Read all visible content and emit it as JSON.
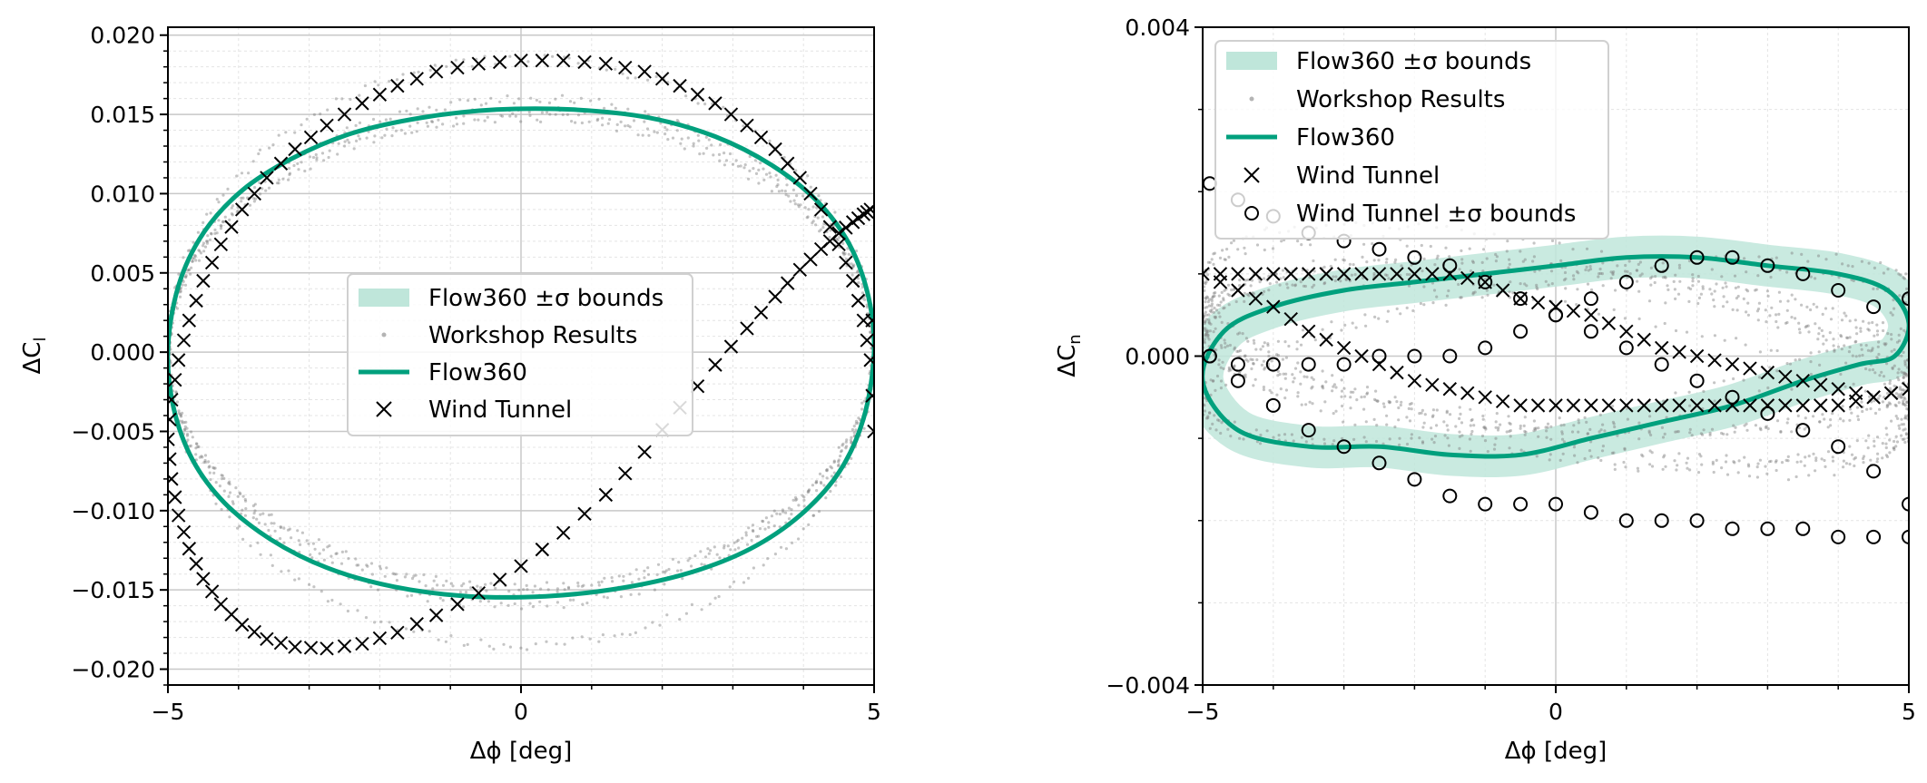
{
  "colors": {
    "flow360": "#00a07d",
    "band": "#bfe6da",
    "workshop": "#7f7f7f",
    "workshop_legend": "#b4b4b4",
    "wind_tunnel": "#000000",
    "grid_major": "#c8c8c8",
    "grid_minor": "#e4e4e4"
  },
  "chart_data": [
    {
      "type": "line",
      "xlabel": "Δϕ [deg]",
      "ylabel": "ΔC_l",
      "xlim": [
        -5,
        5
      ],
      "ylim": [
        -0.021,
        0.0205
      ],
      "xticks": [
        -5,
        0,
        5
      ],
      "xtick_labels": [
        "−5",
        "0",
        "5"
      ],
      "yticks": [
        -0.02,
        -0.015,
        -0.01,
        -0.005,
        0.0,
        0.005,
        0.01,
        0.015,
        0.02
      ],
      "ytick_labels": [
        "−0.020",
        "−0.015",
        "−0.010",
        "−0.005",
        "0.000",
        "0.005",
        "0.010",
        "0.015",
        "0.020"
      ],
      "grid": true,
      "legend_position": "center",
      "legend": [
        "Flow360 ±σ bounds",
        "Workshop Results",
        "Flow360",
        "Wind Tunnel"
      ],
      "series": [
        {
          "name": "Flow360",
          "style": "line",
          "x": [
            5.0,
            4.92,
            4.65,
            4.2,
            3.55,
            2.75,
            1.8,
            0.75,
            -0.35,
            -1.4,
            -2.4,
            -3.25,
            -3.95,
            -4.5,
            -4.85,
            -5.0,
            -4.92,
            -4.65,
            -4.2,
            -3.55,
            -2.75,
            -1.8,
            -0.75,
            0.35,
            1.4,
            2.4,
            3.25,
            3.95,
            4.5,
            4.85,
            5.0
          ],
          "y": [
            0.0,
            0.0035,
            0.0068,
            0.0095,
            0.0118,
            0.0136,
            0.0148,
            0.0153,
            0.0153,
            0.0148,
            0.0138,
            0.0122,
            0.0102,
            0.0075,
            0.0042,
            0.0002,
            -0.0035,
            -0.0068,
            -0.0095,
            -0.0118,
            -0.0136,
            -0.0148,
            -0.0154,
            -0.0154,
            -0.0149,
            -0.0139,
            -0.0124,
            -0.0103,
            -0.0076,
            -0.0042,
            0.0
          ]
        },
        {
          "name": "Wind Tunnel",
          "style": "x-markers",
          "x": [
            5.0,
            4.95,
            4.85,
            4.7,
            4.5,
            4.25,
            3.95,
            3.6,
            3.2,
            2.75,
            2.25,
            1.75,
            1.2,
            0.6,
            0.0,
            -0.6,
            -1.2,
            -1.75,
            -2.25,
            -2.75,
            -3.2,
            -3.6,
            -3.95,
            -4.25,
            -4.5,
            -4.7,
            -4.85,
            -4.95,
            -5.0,
            -4.95,
            -4.85,
            -4.7,
            -4.5,
            -4.25,
            -3.95,
            -3.6,
            -3.2,
            -2.75,
            -2.25,
            -1.75,
            -1.2,
            -0.6,
            0.0,
            0.6,
            1.2,
            1.75,
            2.25,
            2.75,
            3.2,
            3.6,
            3.95,
            4.25,
            4.5,
            4.7,
            4.85,
            4.95
          ],
          "y": [
            -0.005,
            -0.0005,
            0.002,
            0.0045,
            0.0068,
            0.009,
            0.011,
            0.0128,
            0.0143,
            0.0157,
            0.0168,
            0.0177,
            0.0182,
            0.0184,
            0.0184,
            0.0182,
            0.0177,
            0.0168,
            0.0157,
            0.0143,
            0.0128,
            0.011,
            0.009,
            0.0068,
            0.0045,
            0.002,
            -0.0005,
            -0.003,
            -0.0055,
            -0.008,
            -0.0103,
            -0.0124,
            -0.0143,
            -0.0159,
            -0.0172,
            -0.0181,
            -0.0186,
            -0.0187,
            -0.0184,
            -0.0177,
            -0.0166,
            -0.0152,
            -0.0135,
            -0.0114,
            -0.009,
            -0.0063,
            -0.0035,
            -0.0008,
            0.0015,
            0.0035,
            0.0052,
            0.0065,
            0.0075,
            0.0082,
            0.0087,
            0.009
          ]
        }
      ]
    },
    {
      "type": "line",
      "xlabel": "Δϕ [deg]",
      "ylabel": "ΔC_n",
      "xlim": [
        -5,
        5
      ],
      "ylim": [
        -0.004,
        0.004
      ],
      "xticks": [
        -5,
        0,
        5
      ],
      "xtick_labels": [
        "−5",
        "0",
        "5"
      ],
      "yticks": [
        -0.004,
        0.0,
        0.004
      ],
      "ytick_labels": [
        "−0.004",
        "0.000",
        "0.004"
      ],
      "grid": true,
      "legend_position": "upper left",
      "legend": [
        "Flow360 ±σ bounds",
        "Workshop Results",
        "Flow360",
        "Wind Tunnel",
        "Wind Tunnel ±σ bounds"
      ],
      "series": [
        {
          "name": "Flow360",
          "style": "line",
          "x": [
            -5.0,
            -4.5,
            -3.5,
            -2.5,
            -1.5,
            -0.5,
            0.5,
            1.5,
            2.5,
            3.5,
            4.3,
            4.8,
            5.0,
            4.7,
            4.0,
            3.0,
            2.0,
            1.0,
            0.0,
            -1.0,
            -2.0,
            -3.0,
            -4.0,
            -4.7,
            -5.0
          ],
          "y": [
            -0.0003,
            -0.0009,
            -0.0011,
            -0.0011,
            -0.0012,
            -0.0012,
            -0.001,
            -0.0008,
            -0.0006,
            -0.0003,
            -0.0001,
            0.0,
            0.0004,
            0.0008,
            0.001,
            0.0011,
            0.0012,
            0.0012,
            0.0011,
            0.001,
            0.0009,
            0.0008,
            0.0006,
            0.0003,
            -0.0003
          ]
        },
        {
          "name": "Wind Tunnel",
          "style": "x-markers",
          "x": [
            -5.0,
            -4.5,
            -4.0,
            -3.5,
            -3.0,
            -2.5,
            -2.0,
            -1.5,
            -1.0,
            -0.5,
            0.0,
            0.5,
            1.0,
            1.5,
            2.0,
            2.5,
            3.0,
            3.5,
            4.0,
            4.5,
            5.0,
            4.5,
            4.0,
            3.5,
            3.0,
            2.5,
            2.0,
            1.5,
            1.0,
            0.5,
            0.0,
            -0.5,
            -1.0,
            -1.5,
            -2.0,
            -2.5,
            -3.0,
            -3.5,
            -4.0,
            -4.5
          ],
          "y": [
            0.001,
            0.0008,
            0.0006,
            0.0003,
            0.0001,
            -0.0001,
            -0.0003,
            -0.0004,
            -0.0005,
            -0.0006,
            -0.0006,
            -0.0006,
            -0.0006,
            -0.0006,
            -0.0006,
            -0.0006,
            -0.0006,
            -0.0006,
            -0.0006,
            -0.0005,
            -0.0004,
            -0.0005,
            -0.0004,
            -0.0003,
            -0.0002,
            -0.0001,
            0.0,
            0.0001,
            0.0003,
            0.0005,
            0.0006,
            0.0007,
            0.0009,
            0.001,
            0.001,
            0.001,
            0.001,
            0.001,
            0.001,
            0.001
          ]
        },
        {
          "name": "Wind Tunnel ±σ bounds",
          "style": "o-markers",
          "x": [
            -4.9,
            -4.5,
            -4.0,
            -3.5,
            -3.0,
            -2.5,
            -2.0,
            -1.5,
            -1.0,
            -0.5,
            0.0,
            0.5,
            1.0,
            1.5,
            2.0,
            2.5,
            3.0,
            3.5,
            4.0,
            4.5,
            5.0,
            -4.9,
            -4.5,
            -4.0,
            -3.5,
            -3.0,
            -2.5,
            -2.0,
            -1.5,
            -1.0,
            -0.5,
            0.0,
            0.5,
            1.0,
            1.5,
            2.0,
            2.5,
            3.0,
            3.5,
            4.0,
            4.5,
            5.0,
            -4.9,
            -4.5,
            -4.0,
            -3.5,
            -3.0,
            -2.5,
            -2.0,
            -1.5,
            -1.0,
            -0.5,
            0.0,
            0.5,
            1.0,
            1.5,
            2.0,
            2.5,
            3.0,
            3.5,
            4.0,
            4.5,
            5.0
          ],
          "y": [
            0.0021,
            0.0019,
            0.0017,
            0.0015,
            0.0014,
            0.0013,
            0.0012,
            0.0011,
            0.0009,
            0.0007,
            0.0005,
            0.0003,
            0.0001,
            -0.0001,
            -0.0003,
            -0.0005,
            -0.0007,
            -0.0009,
            -0.0011,
            -0.0014,
            -0.0018,
            0.0,
            -0.0003,
            -0.0006,
            -0.0009,
            -0.0011,
            -0.0013,
            -0.0015,
            -0.0017,
            -0.0018,
            -0.0018,
            -0.0018,
            -0.0019,
            -0.002,
            -0.002,
            -0.002,
            -0.0021,
            -0.0021,
            -0.0021,
            -0.0022,
            -0.0022,
            -0.0022,
            0.0,
            -0.0001,
            -0.0001,
            -0.0001,
            -0.0001,
            0.0,
            0.0,
            0.0,
            0.0001,
            0.0003,
            0.0005,
            0.0007,
            0.0009,
            0.0011,
            0.0012,
            0.0012,
            0.0011,
            0.001,
            0.0008,
            0.0006,
            0.0007
          ]
        }
      ]
    }
  ]
}
